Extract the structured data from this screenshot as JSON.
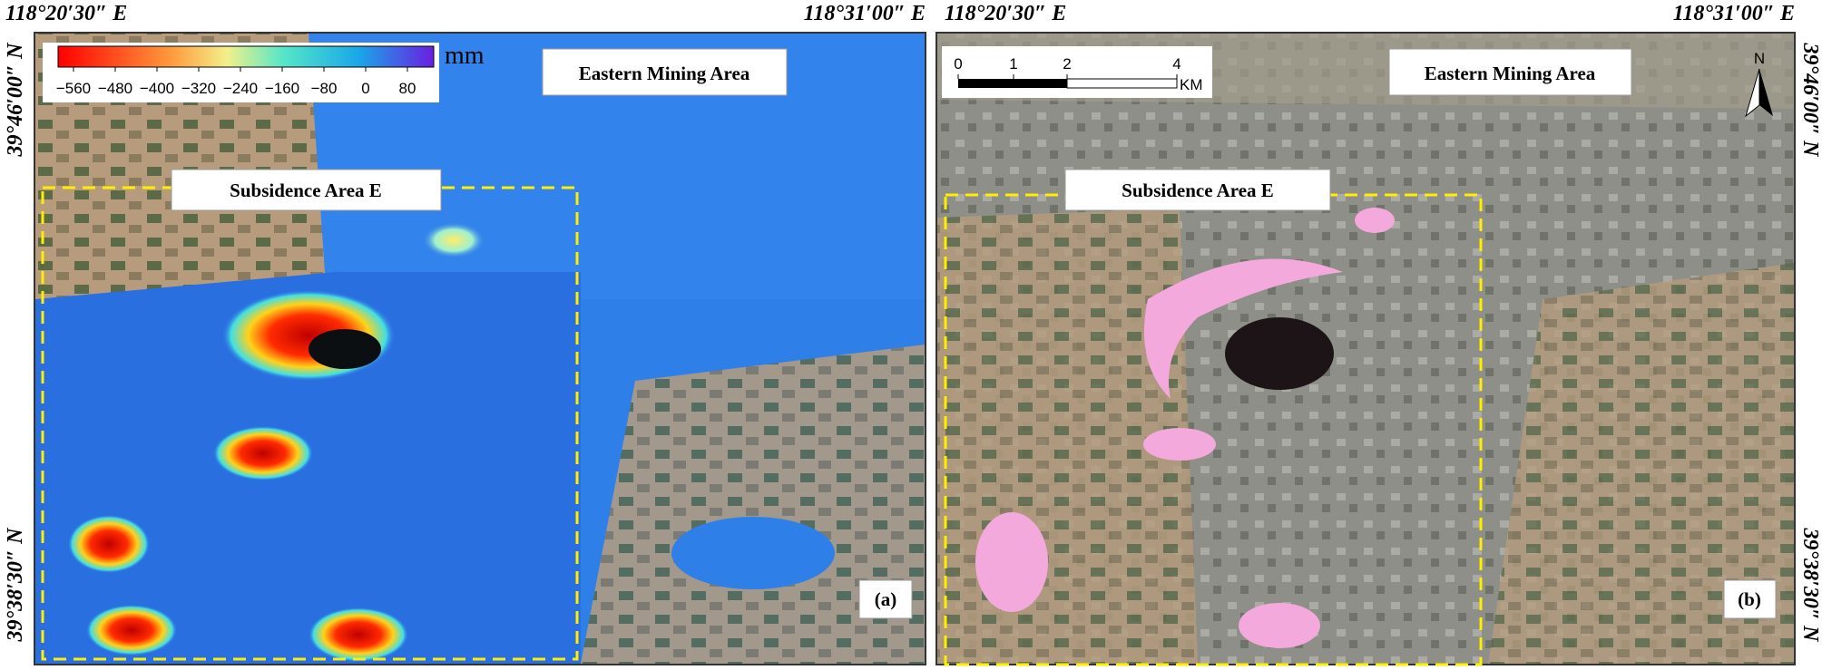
{
  "panel_a": {
    "top_left_coord": "118°20′30″ E",
    "top_right_coord": "118°31′00″ E",
    "left_top_coord": "39°46′00″ N",
    "left_bottom_coord": "39°38′30″ N",
    "colorbar": {
      "unit": "mm",
      "ticks": [
        "−560",
        "−480",
        "−400",
        "−320",
        "−240",
        "−160",
        "−80",
        "0",
        "80"
      ]
    },
    "region_label": "Eastern Mining Area",
    "subsidence_label": "Subsidence Area E",
    "panel_label": "(a)"
  },
  "panel_b": {
    "top_left_coord": "118°20′30″ E",
    "top_right_coord": "118°31′00″ E",
    "right_top_coord": "39°46′00″ N",
    "right_bottom_coord": "39°38′30″ N",
    "scale_bar": {
      "ticks": [
        "0",
        "1",
        "2",
        "4"
      ],
      "unit": "KM"
    },
    "north": "N",
    "region_label": "Eastern Mining Area",
    "subsidence_label": "Subsidence Area E",
    "panel_label": "(b)"
  }
}
